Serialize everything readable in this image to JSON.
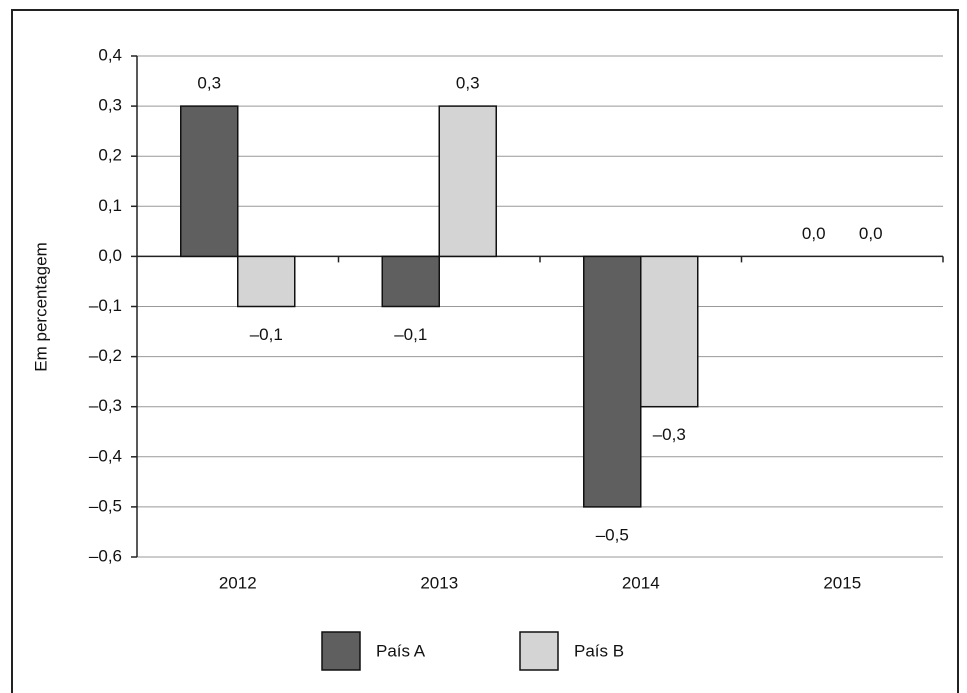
{
  "chart_data": {
    "type": "bar",
    "y_label": "Em percentagem",
    "categories": [
      "2012",
      "2013",
      "2014",
      "2015"
    ],
    "series": [
      {
        "name": "País A",
        "color": "#5f5f5f",
        "values": [
          0.3,
          -0.1,
          -0.5,
          0.0
        ],
        "value_labels": [
          "0,3",
          "–0,1",
          "–0,5",
          "0,0"
        ]
      },
      {
        "name": "País B",
        "color": "#d4d4d4",
        "values": [
          -0.1,
          0.3,
          -0.3,
          0.0
        ],
        "value_labels": [
          "–0,1",
          "0,3",
          "–0,3",
          "0,0"
        ]
      }
    ],
    "ylim": [
      -0.6,
      0.4
    ],
    "yticks": [
      {
        "value": -0.6,
        "label": "–0,6"
      },
      {
        "value": -0.5,
        "label": "–0,5"
      },
      {
        "value": -0.4,
        "label": "–0,4"
      },
      {
        "value": -0.3,
        "label": "–0,3"
      },
      {
        "value": -0.2,
        "label": "–0,2"
      },
      {
        "value": -0.1,
        "label": "–0,1"
      },
      {
        "value": 0.0,
        "label": "0,0"
      },
      {
        "value": 0.1,
        "label": "0,1"
      },
      {
        "value": 0.2,
        "label": "0,2"
      },
      {
        "value": 0.3,
        "label": "0,3"
      },
      {
        "value": 0.4,
        "label": "0,4"
      }
    ],
    "grid": true
  }
}
